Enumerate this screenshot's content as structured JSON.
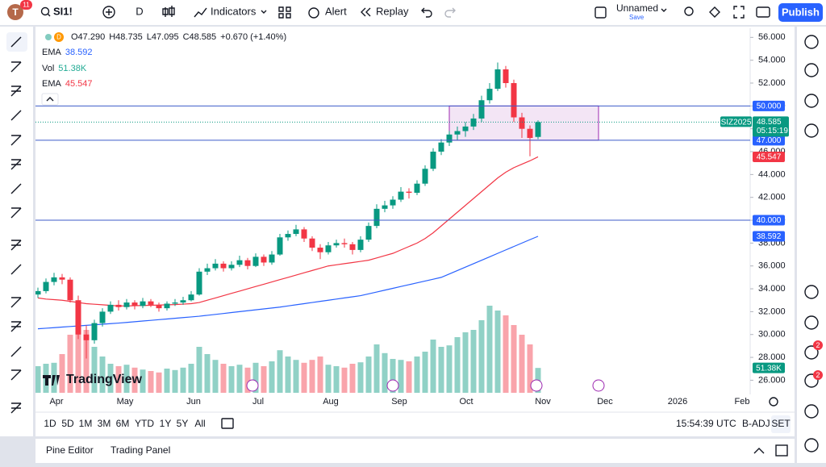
{
  "header": {
    "avatar": "T",
    "notifications": "11",
    "symbol": "SI1!",
    "interval": "D",
    "indicators": "Indicators",
    "alert": "Alert",
    "replay": "Replay",
    "layout_name": "Unnamed",
    "save": "Save",
    "publish": "Publish"
  },
  "chart_data": {
    "type": "candlestick",
    "legend": {
      "interval": "D",
      "ohlc": [
        "O47.290",
        "H48.735",
        "L47.095",
        "C48.585",
        "+0.670 (+1.40%)"
      ]
    },
    "x_labels": [
      "Apr",
      "May",
      "Jun",
      "Jul",
      "Aug",
      "Sep",
      "Oct",
      "Nov",
      "Dec",
      "2026",
      "Feb"
    ],
    "ylim": [
      24.9,
      56.8
    ],
    "yticks": [
      {
        "value": 26,
        "label": "26.000"
      },
      {
        "value": 28,
        "label": "28.000"
      },
      {
        "value": 30,
        "label": "30.000"
      },
      {
        "value": 32,
        "label": "32.000"
      },
      {
        "value": 34,
        "label": "34.000"
      },
      {
        "value": 36,
        "label": "36.000"
      },
      {
        "value": 38,
        "label": "38.000"
      },
      {
        "value": 40,
        "label": "40.000"
      },
      {
        "value": 42,
        "label": "42.000"
      },
      {
        "value": 44,
        "label": "44.000"
      },
      {
        "value": 46,
        "label": "46.000"
      },
      {
        "value": 48,
        "label": "48.000"
      },
      {
        "value": 50,
        "label": "50.000"
      },
      {
        "value": 52,
        "label": "52.000"
      },
      {
        "value": 54,
        "label": "54.000"
      },
      {
        "value": 56,
        "label": "56.000"
      }
    ],
    "up_color": "#089981",
    "down_color": "#f23645",
    "candles": [
      [
        33.5,
        34.1,
        33.2,
        33.8
      ],
      [
        33.8,
        34.9,
        33.6,
        34.6
      ],
      [
        34.6,
        35.4,
        34.3,
        35.0
      ],
      [
        35.0,
        35.3,
        34.4,
        34.8
      ],
      [
        34.8,
        35.0,
        32.8,
        33.0
      ],
      [
        33.0,
        33.4,
        29.6,
        30.0
      ],
      [
        30.0,
        30.8,
        27.9,
        29.5
      ],
      [
        29.5,
        31.3,
        29.2,
        31.0
      ],
      [
        31.0,
        32.3,
        30.7,
        32.0
      ],
      [
        32.0,
        32.9,
        31.8,
        32.6
      ],
      [
        32.6,
        33.0,
        32.1,
        32.4
      ],
      [
        32.4,
        33.1,
        32.2,
        32.8
      ],
      [
        32.8,
        33.0,
        32.2,
        32.5
      ],
      [
        32.5,
        33.2,
        32.3,
        32.9
      ],
      [
        32.9,
        33.1,
        32.4,
        32.6
      ],
      [
        32.6,
        32.8,
        32.0,
        32.3
      ],
      [
        32.3,
        32.9,
        32.1,
        32.7
      ],
      [
        32.7,
        33.1,
        32.5,
        32.8
      ],
      [
        32.8,
        33.3,
        32.6,
        33.0
      ],
      [
        33.0,
        33.8,
        32.9,
        33.5
      ],
      [
        33.5,
        35.8,
        33.4,
        35.5
      ],
      [
        35.5,
        36.2,
        35.2,
        35.8
      ],
      [
        35.8,
        36.6,
        35.6,
        36.2
      ],
      [
        36.2,
        36.4,
        35.5,
        35.8
      ],
      [
        35.8,
        36.4,
        35.6,
        36.1
      ],
      [
        36.1,
        36.9,
        35.9,
        36.5
      ],
      [
        36.5,
        36.7,
        35.7,
        36.0
      ],
      [
        36.0,
        37.1,
        35.9,
        36.8
      ],
      [
        36.8,
        37.0,
        36.0,
        36.3
      ],
      [
        36.3,
        37.3,
        36.1,
        37.0
      ],
      [
        37.0,
        38.8,
        36.9,
        38.5
      ],
      [
        38.5,
        39.1,
        38.2,
        38.8
      ],
      [
        38.8,
        39.6,
        38.6,
        39.2
      ],
      [
        39.2,
        39.4,
        38.1,
        38.4
      ],
      [
        38.4,
        38.6,
        37.3,
        37.6
      ],
      [
        37.6,
        37.9,
        36.6,
        37.2
      ],
      [
        37.2,
        38.1,
        37.0,
        37.8
      ],
      [
        37.8,
        38.3,
        37.6,
        38.0
      ],
      [
        38.0,
        38.4,
        37.6,
        37.9
      ],
      [
        37.9,
        38.1,
        37.0,
        37.4
      ],
      [
        37.4,
        38.6,
        37.2,
        38.3
      ],
      [
        38.3,
        39.8,
        38.1,
        39.5
      ],
      [
        39.5,
        41.4,
        39.3,
        41.0
      ],
      [
        41.0,
        41.7,
        40.7,
        41.3
      ],
      [
        41.3,
        42.1,
        41.0,
        41.8
      ],
      [
        41.8,
        42.9,
        41.6,
        42.5
      ],
      [
        42.5,
        42.8,
        41.9,
        42.4
      ],
      [
        42.4,
        43.5,
        42.2,
        43.2
      ],
      [
        43.2,
        44.8,
        43.0,
        44.5
      ],
      [
        44.5,
        46.3,
        44.3,
        46.0
      ],
      [
        46.0,
        47.1,
        45.7,
        46.8
      ],
      [
        46.8,
        47.8,
        46.5,
        47.5
      ],
      [
        47.5,
        48.2,
        47.0,
        47.8
      ],
      [
        47.8,
        48.6,
        47.3,
        48.2
      ],
      [
        48.2,
        49.3,
        47.9,
        48.9
      ],
      [
        48.9,
        50.9,
        48.6,
        50.5
      ],
      [
        50.5,
        52.0,
        50.2,
        51.5
      ],
      [
        51.5,
        53.8,
        51.3,
        53.2
      ],
      [
        53.2,
        53.5,
        51.6,
        52.0
      ],
      [
        52.0,
        52.3,
        48.6,
        49.0
      ],
      [
        49.0,
        49.4,
        47.2,
        48.0
      ],
      [
        48.0,
        48.3,
        45.6,
        47.2
      ],
      [
        47.29,
        48.735,
        47.095,
        48.585
      ]
    ],
    "volume": [
      55,
      60,
      62,
      80,
      120,
      150,
      130,
      95,
      75,
      60,
      55,
      58,
      52,
      48,
      45,
      42,
      50,
      47,
      52,
      60,
      95,
      80,
      68,
      60,
      55,
      58,
      52,
      62,
      55,
      65,
      88,
      75,
      68,
      62,
      68,
      75,
      58,
      55,
      52,
      60,
      63,
      75,
      100,
      82,
      70,
      68,
      65,
      75,
      85,
      110,
      95,
      98,
      115,
      125,
      130,
      150,
      180,
      170,
      160,
      140,
      120,
      100,
      51.38
    ],
    "volume_label": "51.38K",
    "volume_name": "Vol",
    "ema_slow": {
      "name": "EMA",
      "label": "38.592",
      "color": "#2962ff",
      "values": [
        30.5,
        30.55,
        30.6,
        30.65,
        30.7,
        30.75,
        30.8,
        30.85,
        30.9,
        30.95,
        31.0,
        31.06,
        31.12,
        31.18,
        31.24,
        31.3,
        31.36,
        31.42,
        31.48,
        31.54,
        31.6,
        31.68,
        31.76,
        31.84,
        31.92,
        32.0,
        32.08,
        32.16,
        32.24,
        32.32,
        32.4,
        32.5,
        32.6,
        32.7,
        32.8,
        32.9,
        33.0,
        33.1,
        33.2,
        33.3,
        33.4,
        33.56,
        33.72,
        33.88,
        34.04,
        34.2,
        34.36,
        34.52,
        34.68,
        34.84,
        35.0,
        35.3,
        35.6,
        35.9,
        36.2,
        36.5,
        36.8,
        37.1,
        37.4,
        37.7,
        38.0,
        38.3,
        38.592
      ]
    },
    "ema_fast": {
      "name": "EMA",
      "label": "45.547",
      "color": "#f23645",
      "values": [
        33.2,
        33.1,
        33.05,
        33.0,
        32.9,
        32.8,
        32.7,
        32.65,
        32.6,
        32.55,
        32.5,
        32.5,
        32.52,
        32.54,
        32.56,
        32.58,
        32.6,
        32.62,
        32.66,
        32.7,
        32.8,
        33.0,
        33.2,
        33.4,
        33.6,
        33.8,
        34.0,
        34.2,
        34.4,
        34.6,
        34.8,
        35.0,
        35.2,
        35.4,
        35.6,
        35.8,
        36.0,
        36.1,
        36.2,
        36.3,
        36.4,
        36.5,
        36.7,
        36.9,
        37.1,
        37.4,
        37.7,
        38.0,
        38.4,
        38.9,
        39.5,
        40.1,
        40.7,
        41.3,
        41.9,
        42.5,
        43.1,
        43.7,
        44.2,
        44.6,
        44.9,
        45.2,
        45.547
      ]
    },
    "levels": [
      {
        "value": 50,
        "label": "50.000"
      },
      {
        "value": 47,
        "label": "47.000"
      },
      {
        "value": 40,
        "label": "40.000"
      }
    ],
    "box": [
      50,
      47
    ],
    "last": {
      "value": 48.585,
      "label": "48.585",
      "symbol": "SIZ2025",
      "countdown": "05:15:19"
    },
    "logo": "TradingView"
  },
  "footer": {
    "timeframes": [
      "1D",
      "5D",
      "1M",
      "3M",
      "6M",
      "YTD",
      "1Y",
      "5Y",
      "All"
    ],
    "clock": "15:54:39 UTC",
    "adjust": "B-ADJ",
    "session": "SET"
  },
  "panel": {
    "pine": "Pine Editor",
    "trading": "Trading Panel"
  },
  "sidebar": {
    "badges": [
      "2",
      "2"
    ]
  }
}
